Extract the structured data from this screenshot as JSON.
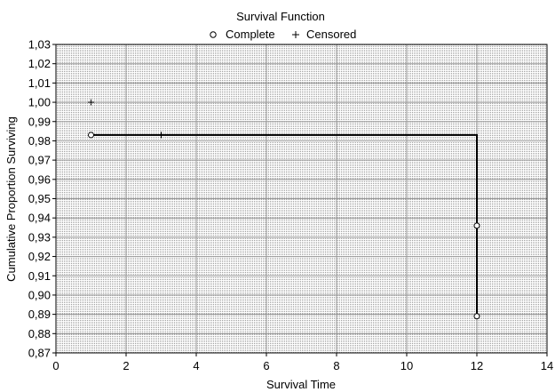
{
  "chart_data": {
    "type": "line",
    "title": "Survival Function",
    "xlabel": "Survival Time",
    "ylabel": "Cumulative Proportion Surviving",
    "xlim": [
      0,
      14
    ],
    "ylim": [
      0.87,
      1.03
    ],
    "x_ticks": [
      "0",
      "2",
      "4",
      "6",
      "8",
      "10",
      "12",
      "14"
    ],
    "y_ticks": [
      "0,87",
      "0,88",
      "0,89",
      "0,90",
      "0,91",
      "0,92",
      "0,93",
      "0,94",
      "0,95",
      "0,96",
      "0,97",
      "0,98",
      "0,99",
      "1,00",
      "1,01",
      "1,02",
      "1,03"
    ],
    "grid": true,
    "legend_position": "top-center",
    "legend": [
      {
        "symbol": "circle",
        "label": "Complete"
      },
      {
        "symbol": "plus",
        "label": "Censored"
      }
    ],
    "series": [
      {
        "name": "",
        "step_line": [
          [
            1,
            0.983
          ],
          [
            12,
            0.983
          ],
          [
            12,
            0.889
          ]
        ],
        "complete": [
          [
            1,
            0.983
          ],
          [
            12,
            0.936
          ],
          [
            12,
            0.889
          ]
        ],
        "censored": [
          [
            1,
            1.0
          ],
          [
            3,
            0.983
          ]
        ]
      }
    ],
    "colors": {
      "line": "#000000",
      "grid": "#9a9a9a",
      "background": "#ffffff"
    }
  }
}
